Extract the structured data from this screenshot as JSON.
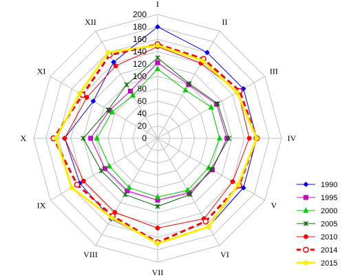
{
  "chart_data": {
    "type": "radar",
    "title": "",
    "axes": [
      "I",
      "II",
      "III",
      "IV",
      "V",
      "VI",
      "VII",
      "VIII",
      "IX",
      "X",
      "XI",
      "XII"
    ],
    "rlim": [
      0,
      200
    ],
    "rticks": [
      "0",
      "20",
      "40",
      "60",
      "80",
      "100",
      "120",
      "140",
      "160",
      "180",
      "200"
    ],
    "grid": true,
    "legend_position": "right",
    "series": [
      {
        "name": "1990",
        "color": "#0000FF",
        "marker": "diamond",
        "dash": false,
        "values": [
          180,
          160,
          160,
          160,
          160,
          165,
          170,
          150,
          145,
          150,
          120,
          142
        ]
      },
      {
        "name": "1995",
        "color": "#CC00CC",
        "marker": "square",
        "dash": false,
        "values": [
          122,
          100,
          110,
          112,
          102,
          102,
          100,
          98,
          98,
          108,
          90,
          88
        ]
      },
      {
        "name": "2000",
        "color": "#00CC00",
        "marker": "triangle",
        "dash": false,
        "values": [
          112,
          90,
          100,
          100,
          95,
          97,
          95,
          92,
          90,
          98,
          85,
          80
        ]
      },
      {
        "name": "2005",
        "color": "#006600",
        "marker": "x",
        "dash": false,
        "values": [
          130,
          102,
          112,
          115,
          100,
          105,
          110,
          105,
          105,
          120,
          92,
          100
        ]
      },
      {
        "name": "2010",
        "color": "#FF0000",
        "marker": "circle",
        "dash": false,
        "values": [
          148,
          140,
          150,
          148,
          140,
          150,
          145,
          138,
          138,
          150,
          132,
          135
        ]
      },
      {
        "name": "2014",
        "color": "#FF0000",
        "marker": "open-circle",
        "dash": true,
        "values": [
          152,
          148,
          153,
          160,
          152,
          155,
          168,
          145,
          150,
          168,
          140,
          155
        ]
      },
      {
        "name": "2015",
        "color": "#FFEE00",
        "marker": "circle",
        "dash": false,
        "values": [
          150,
          145,
          148,
          160,
          150,
          165,
          170,
          148,
          160,
          164,
          145,
          160
        ]
      }
    ]
  }
}
